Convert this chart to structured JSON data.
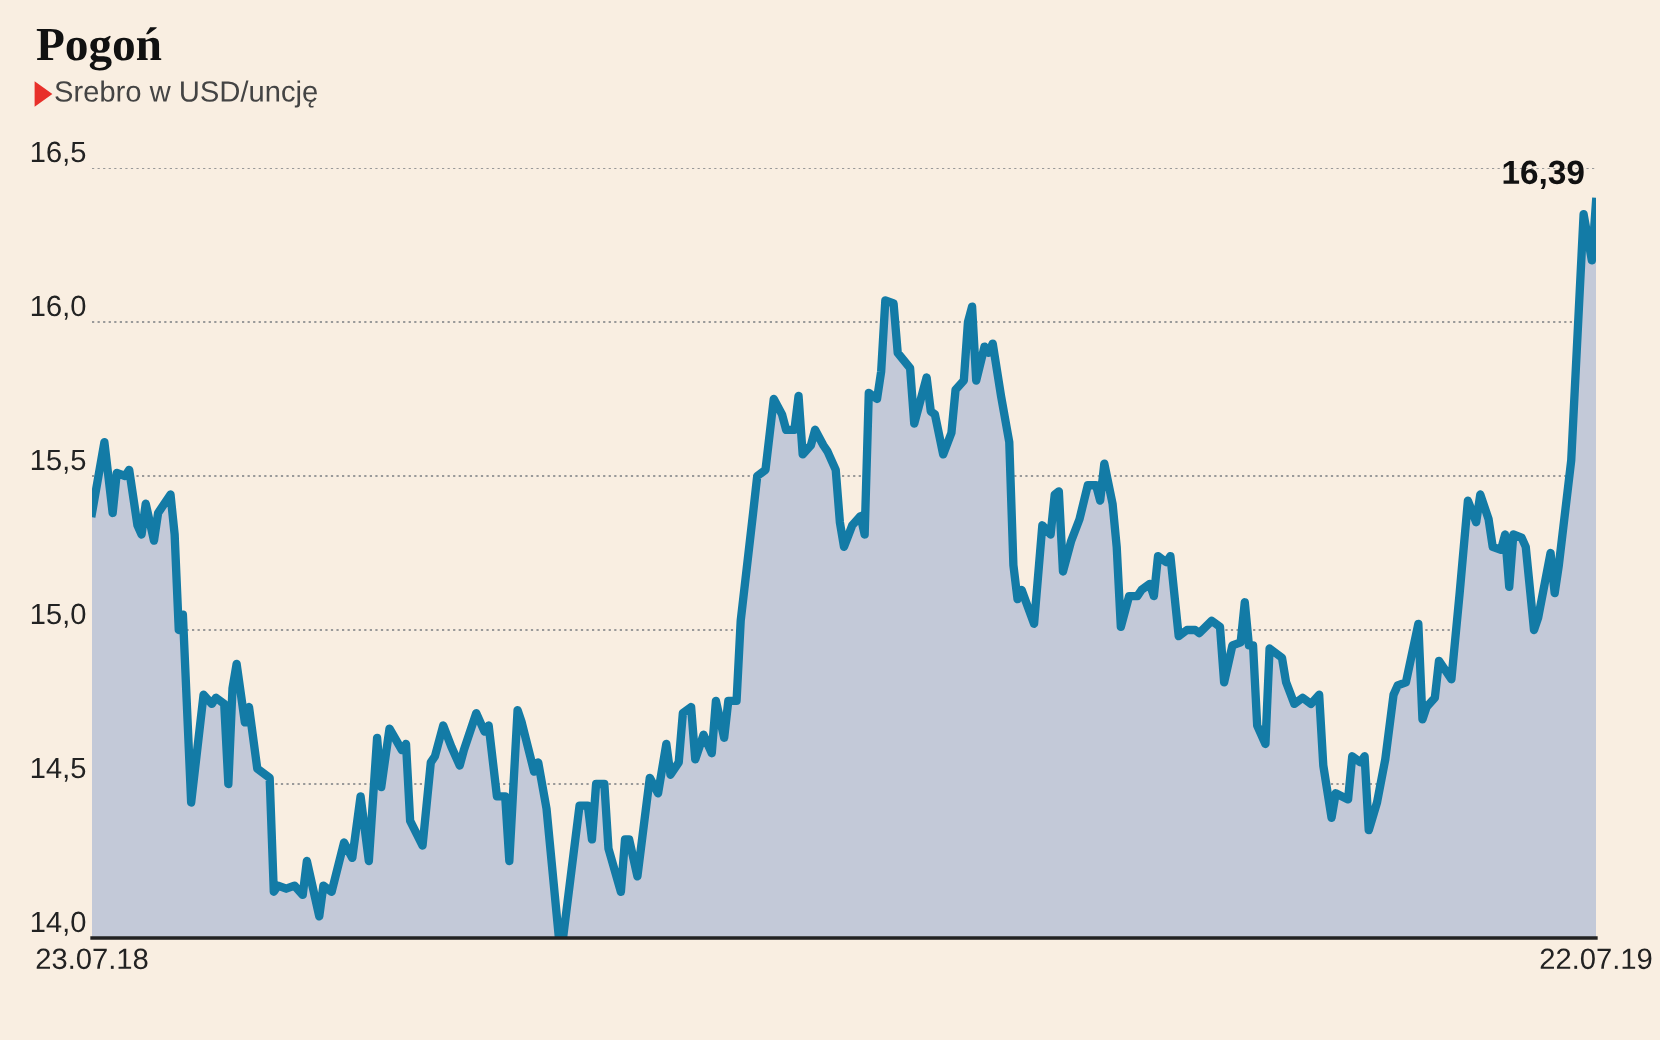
{
  "chart_data": {
    "type": "area",
    "title": "Pogoń",
    "subtitle": "Srebro w USD/uncję",
    "series": [
      {
        "color": "#137ba6",
        "x": [
          "2018-07-23",
          "2018-07-26",
          "2018-07-28",
          "2018-07-29",
          "2018-07-31",
          "2018-08-01",
          "2018-08-03",
          "2018-08-04",
          "2018-08-05",
          "2018-08-07",
          "2018-08-08",
          "2018-08-11",
          "2018-08-12",
          "2018-08-13",
          "2018-08-14",
          "2018-08-16",
          "2018-08-19",
          "2018-08-21",
          "2018-08-22",
          "2018-08-24",
          "2018-08-25",
          "2018-08-26",
          "2018-08-27",
          "2018-08-29",
          "2018-08-30",
          "2018-09-01",
          "2018-09-04",
          "2018-09-05",
          "2018-09-06",
          "2018-09-08",
          "2018-09-10",
          "2018-09-12",
          "2018-09-13",
          "2018-09-16",
          "2018-09-17",
          "2018-09-19",
          "2018-09-22",
          "2018-09-24",
          "2018-09-26",
          "2018-09-28",
          "2018-09-30",
          "2018-10-01",
          "2018-10-03",
          "2018-10-06",
          "2018-10-07",
          "2018-10-08",
          "2018-10-11",
          "2018-10-13",
          "2018-10-14",
          "2018-10-16",
          "2018-10-18",
          "2018-10-20",
          "2018-10-21",
          "2018-10-24",
          "2018-10-26",
          "2018-10-27",
          "2018-10-29",
          "2018-10-31",
          "2018-11-01",
          "2018-11-03",
          "2018-11-04",
          "2018-11-07",
          "2018-11-08",
          "2018-11-10",
          "2018-11-13",
          "2018-11-14",
          "2018-11-18",
          "2018-11-20",
          "2018-11-21",
          "2018-11-22",
          "2018-11-24",
          "2018-11-25",
          "2018-11-28",
          "2018-11-29",
          "2018-11-30",
          "2018-12-02",
          "2018-12-05",
          "2018-12-07",
          "2018-12-09",
          "2018-12-10",
          "2018-12-12",
          "2018-12-13",
          "2018-12-15",
          "2018-12-16",
          "2018-12-18",
          "2018-12-20",
          "2018-12-21",
          "2018-12-23",
          "2018-12-24",
          "2018-12-26",
          "2018-12-27",
          "2018-12-30",
          "2018-12-31",
          "2019-01-02",
          "2019-01-04",
          "2019-01-06",
          "2019-01-07",
          "2019-01-09",
          "2019-01-10",
          "2019-01-11",
          "2019-01-13",
          "2019-01-14",
          "2019-01-16",
          "2019-01-17",
          "2019-01-19",
          "2019-01-20",
          "2019-01-21",
          "2019-01-23",
          "2019-01-25",
          "2019-01-26",
          "2019-01-27",
          "2019-01-29",
          "2019-01-30",
          "2019-01-31",
          "2019-02-02",
          "2019-02-03",
          "2019-02-06",
          "2019-02-07",
          "2019-02-08",
          "2019-02-10",
          "2019-02-11",
          "2019-02-12",
          "2019-02-14",
          "2019-02-16",
          "2019-02-17",
          "2019-02-19",
          "2019-02-20",
          "2019-02-21",
          "2019-02-22",
          "2019-02-24",
          "2019-02-25",
          "2019-02-26",
          "2019-02-28",
          "2019-03-02",
          "2019-03-03",
          "2019-03-04",
          "2019-03-05",
          "2019-03-08",
          "2019-03-10",
          "2019-03-12",
          "2019-03-13",
          "2019-03-14",
          "2019-03-15",
          "2019-03-17",
          "2019-03-19",
          "2019-03-21",
          "2019-03-23",
          "2019-03-24",
          "2019-03-25",
          "2019-03-27",
          "2019-03-28",
          "2019-03-29",
          "2019-03-31",
          "2019-04-02",
          "2019-04-03",
          "2019-04-05",
          "2019-04-06",
          "2019-04-07",
          "2019-04-09",
          "2019-04-10",
          "2019-04-12",
          "2019-04-14",
          "2019-04-16",
          "2019-04-17",
          "2019-04-20",
          "2019-04-22",
          "2019-04-23",
          "2019-04-25",
          "2019-04-27",
          "2019-04-28",
          "2019-04-29",
          "2019-04-30",
          "2019-05-01",
          "2019-05-03",
          "2019-05-04",
          "2019-05-07",
          "2019-05-08",
          "2019-05-10",
          "2019-05-12",
          "2019-05-14",
          "2019-05-16",
          "2019-05-17",
          "2019-05-19",
          "2019-05-20",
          "2019-05-23",
          "2019-05-24",
          "2019-05-26",
          "2019-05-27",
          "2019-05-28",
          "2019-05-30",
          "2019-06-01",
          "2019-06-03",
          "2019-06-04",
          "2019-06-06",
          "2019-06-09",
          "2019-06-10",
          "2019-06-11",
          "2019-06-13",
          "2019-06-14",
          "2019-06-17",
          "2019-06-19",
          "2019-06-21",
          "2019-06-23",
          "2019-06-24",
          "2019-06-26",
          "2019-06-27",
          "2019-06-29",
          "2019-06-30",
          "2019-07-01",
          "2019-07-02",
          "2019-07-04",
          "2019-07-05",
          "2019-07-07",
          "2019-07-08",
          "2019-07-11",
          "2019-07-12",
          "2019-07-13",
          "2019-07-16",
          "2019-07-19",
          "2019-07-21",
          "2019-07-22"
        ],
        "values": [
          15.38,
          15.61,
          15.38,
          15.51,
          15.5,
          15.52,
          15.34,
          15.31,
          15.41,
          15.29,
          15.38,
          15.44,
          15.31,
          15.0,
          15.05,
          14.44,
          14.79,
          14.76,
          14.78,
          14.76,
          14.5,
          14.81,
          14.89,
          14.7,
          14.75,
          14.55,
          14.52,
          14.15,
          14.17,
          14.16,
          14.17,
          14.14,
          14.25,
          14.07,
          14.17,
          14.15,
          14.31,
          14.26,
          14.46,
          14.25,
          14.65,
          14.49,
          14.68,
          14.61,
          14.63,
          14.38,
          14.3,
          14.57,
          14.59,
          14.69,
          14.62,
          14.56,
          14.61,
          14.73,
          14.67,
          14.69,
          14.46,
          14.46,
          14.25,
          14.74,
          14.7,
          14.54,
          14.57,
          14.42,
          14.0,
          14.0,
          14.43,
          14.43,
          14.32,
          14.5,
          14.5,
          14.29,
          14.15,
          14.32,
          14.32,
          14.2,
          14.52,
          14.47,
          14.63,
          14.53,
          14.57,
          14.73,
          14.75,
          14.58,
          14.66,
          14.6,
          14.77,
          14.65,
          14.77,
          14.77,
          15.03,
          15.38,
          15.5,
          15.52,
          15.75,
          15.7,
          15.65,
          15.65,
          15.76,
          15.57,
          15.6,
          15.65,
          15.6,
          15.58,
          15.52,
          15.35,
          15.27,
          15.34,
          15.37,
          15.31,
          15.77,
          15.75,
          15.84,
          16.07,
          16.06,
          15.9,
          15.85,
          15.67,
          15.72,
          15.82,
          15.71,
          15.7,
          15.57,
          15.64,
          15.78,
          15.81,
          16.0,
          16.05,
          15.81,
          15.92,
          15.9,
          15.93,
          15.76,
          15.61,
          15.21,
          15.1,
          15.13,
          15.02,
          15.34,
          15.31,
          15.44,
          15.45,
          15.19,
          15.29,
          15.36,
          15.47,
          15.47,
          15.42,
          15.54,
          15.41,
          15.27,
          15.01,
          15.11,
          15.11,
          15.13,
          15.15,
          15.11,
          15.24,
          15.22,
          15.24,
          14.98,
          15.0,
          15.0,
          14.99,
          15.03,
          15.01,
          14.83,
          14.95,
          14.96,
          15.09,
          14.95,
          14.95,
          14.69,
          14.63,
          14.94,
          14.91,
          14.83,
          14.76,
          14.78,
          14.76,
          14.79,
          14.56,
          14.39,
          14.47,
          14.45,
          14.59,
          14.57,
          14.59,
          14.35,
          14.44,
          14.58,
          14.79,
          14.82,
          14.83,
          15.02,
          14.71,
          14.75,
          14.78,
          14.9,
          14.84,
          15.12,
          15.42,
          15.35,
          15.44,
          15.36,
          15.27,
          15.26,
          15.31,
          15.14,
          15.31,
          15.3,
          15.27,
          15.0,
          15.04,
          15.25,
          15.12,
          15.21,
          15.55,
          16.35,
          16.2,
          16.39
        ]
      }
    ],
    "xlim": [
      "2018-07-23",
      "2019-07-22"
    ],
    "xticks": [
      {
        "value": "2018-07-23",
        "label": "23.07.18"
      },
      {
        "value": "2019-07-22",
        "label": "22.07.19"
      }
    ],
    "ylim": [
      14.0,
      16.5
    ],
    "yticks": [
      {
        "value": 14.0,
        "label": "14,0"
      },
      {
        "value": 14.5,
        "label": "14,5"
      },
      {
        "value": 15.0,
        "label": "15,0"
      },
      {
        "value": 15.5,
        "label": "15,5"
      },
      {
        "value": 16.0,
        "label": "16,0"
      },
      {
        "value": 16.5,
        "label": "16,5"
      }
    ],
    "grid": "y",
    "annotations": [
      {
        "text": "16,39",
        "x": "2019-07-22",
        "y": 16.39
      }
    ]
  }
}
